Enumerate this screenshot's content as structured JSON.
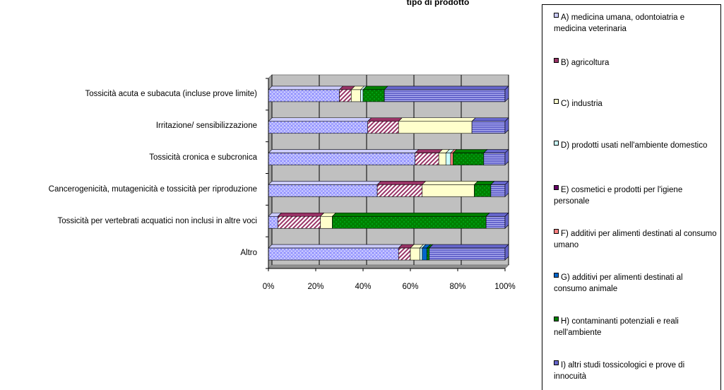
{
  "chart_data": {
    "type": "bar",
    "orientation": "horizontal",
    "stacked": "percent",
    "title": "tipo di prodotto",
    "categories": [
      "Tossicità acuta e subacuta (incluse prove limite)",
      "Irritazione/ sensibilizzazione",
      "Tossicità cronica e subcronica",
      "Cancerogenicità, mutagenicità e tossicità per riproduzione",
      "Tossicità per vertebrati acquatici non inclusi in altre voci",
      "Altro"
    ],
    "x_ticks": [
      "0%",
      "20%",
      "40%",
      "60%",
      "80%",
      "100%"
    ],
    "xlim": [
      0,
      100
    ],
    "grid": true,
    "legend_position": "right",
    "series": [
      {
        "name": "A) medicina umana, odontoiatria e medicina veterinaria",
        "color": "#ccccff",
        "pattern": "crosshatch",
        "values": [
          30,
          42,
          62,
          46,
          4,
          55
        ]
      },
      {
        "name": "B) agricoltura",
        "color": "#993366",
        "pattern": "diagonal",
        "values": [
          5,
          13,
          10,
          19,
          18,
          5
        ]
      },
      {
        "name": "C) industria",
        "color": "#ffffcc",
        "pattern": "solid",
        "values": [
          4,
          31,
          3,
          22,
          5,
          4
        ]
      },
      {
        "name": "D) prodotti usati nell'ambiente domestico",
        "color": "#ccffff",
        "pattern": "solid",
        "values": [
          1,
          0,
          2,
          0,
          0,
          1
        ]
      },
      {
        "name": "E) cosmetici e prodotti per l'igiene personale",
        "color": "#660066",
        "pattern": "solid",
        "values": [
          0,
          0,
          0,
          0,
          0,
          0
        ]
      },
      {
        "name": "F) additivi per alimenti destinati al consumo umano",
        "color": "#ff8080",
        "pattern": "solid",
        "values": [
          0,
          0,
          1,
          0,
          0,
          0
        ]
      },
      {
        "name": "G) additivi per alimenti destinati al consumo animale",
        "color": "#0066cc",
        "pattern": "solid",
        "values": [
          0,
          0,
          0,
          0,
          0,
          2
        ]
      },
      {
        "name": "H) contaminanti potenziali e reali nell'ambiente",
        "color": "#008000",
        "pattern": "dots",
        "values": [
          9,
          0,
          13,
          7,
          65,
          1
        ]
      },
      {
        "name": "I)  altri studi tossicologici e prove di innocuità",
        "color": "#6666cc",
        "pattern": "horizontal",
        "values": [
          51,
          14,
          9,
          6,
          8,
          32
        ]
      }
    ]
  }
}
